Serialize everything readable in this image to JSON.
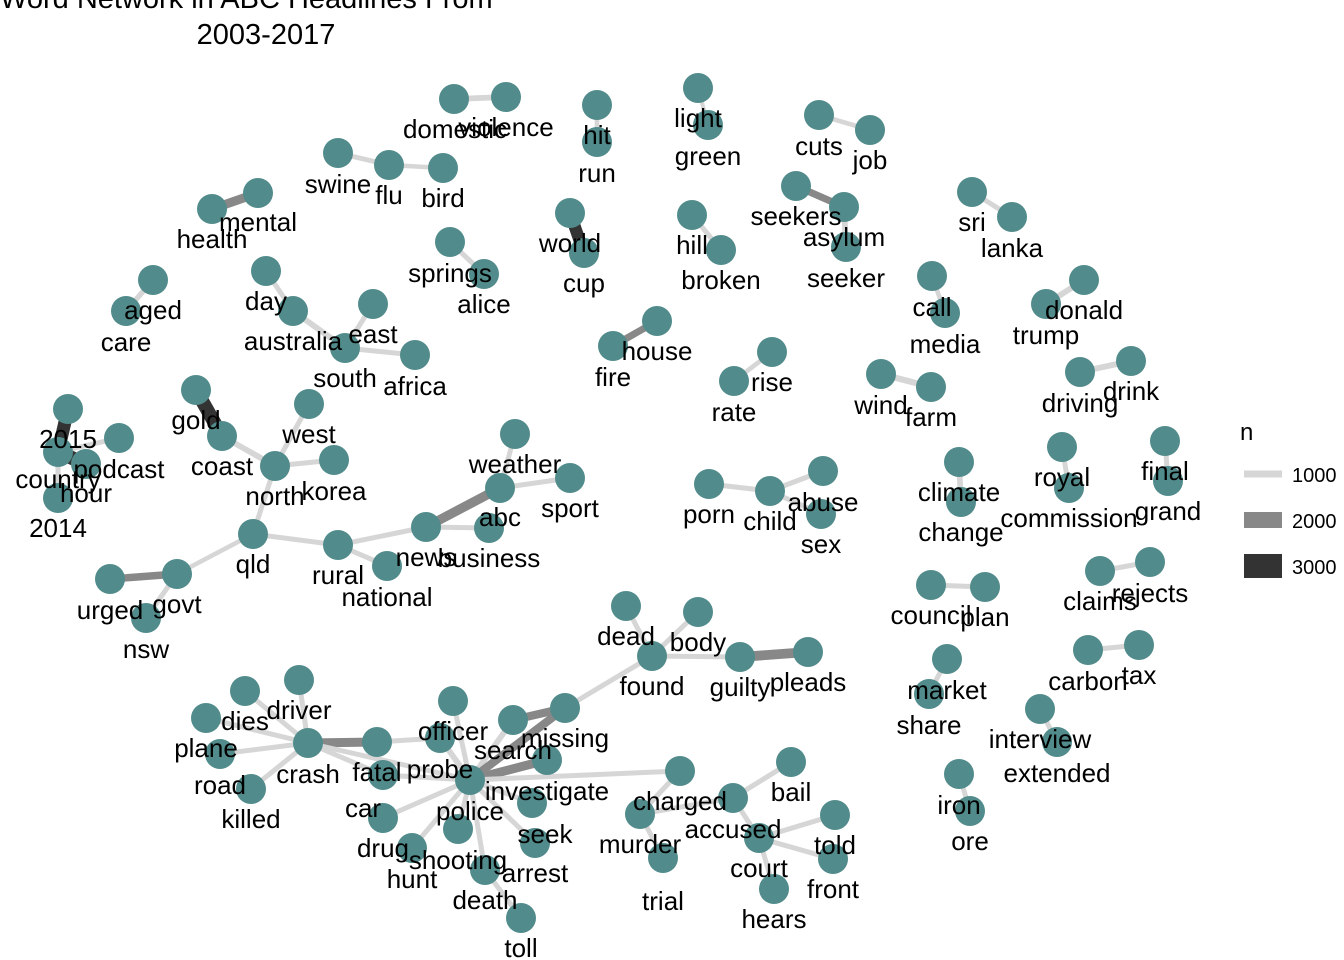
{
  "title_lines": [
    "Word Network in ABC Headlines From",
    "2003-2017"
  ],
  "colors": {
    "node": "#528b8b",
    "edge_1000": "#d6d6d6",
    "edge_2000": "#888888",
    "edge_3000": "#333333",
    "background": "#ffffff"
  },
  "legend": {
    "title": "n",
    "entries": [
      {
        "label": "1000",
        "n": 1000
      },
      {
        "label": "2000",
        "n": 2000
      },
      {
        "label": "3000",
        "n": 3000
      }
    ]
  },
  "chart_data": {
    "type": "network",
    "nodes": [
      "domestic",
      "violence",
      "hit",
      "run",
      "light",
      "green",
      "cuts",
      "job",
      "swine",
      "flu",
      "bird",
      "health",
      "mental",
      "seekers",
      "asylum",
      "seeker",
      "world",
      "cup",
      "hill",
      "broken",
      "sri",
      "lanka",
      "springs",
      "alice",
      "aged",
      "care",
      "day",
      "australia",
      "east",
      "south",
      "africa",
      "call",
      "media",
      "donald",
      "trump",
      "fire",
      "house",
      "rate",
      "rise",
      "wind",
      "farm",
      "driving",
      "drink",
      "gold",
      "coast",
      "west",
      "2015",
      "country",
      "podcast",
      "hour",
      "2014",
      "north",
      "korea",
      "weather",
      "abc",
      "sport",
      "news",
      "business",
      "rural",
      "national",
      "qld",
      "urged",
      "govt",
      "nsw",
      "porn",
      "child",
      "abuse",
      "sex",
      "climate",
      "change",
      "royal",
      "commission",
      "final",
      "grand",
      "council",
      "plan",
      "claims",
      "rejects",
      "carbon",
      "tax",
      "market",
      "share",
      "interview",
      "extended",
      "iron",
      "ore",
      "dead",
      "body",
      "found",
      "guilty",
      "pleads",
      "officer",
      "missing",
      "search",
      "driver",
      "dies",
      "plane",
      "crash",
      "fatal",
      "probe",
      "road",
      "killed",
      "car",
      "investigate",
      "police",
      "charged",
      "bail",
      "accused",
      "told",
      "front",
      "court",
      "hears",
      "murder",
      "trial",
      "seek",
      "arrest",
      "drug",
      "hunt",
      "shooting",
      "death",
      "toll"
    ],
    "edges": [
      {
        "from": "domestic",
        "to": "violence",
        "n": 1200
      },
      {
        "from": "hit",
        "to": "run",
        "n": 900
      },
      {
        "from": "light",
        "to": "green",
        "n": 800
      },
      {
        "from": "cuts",
        "to": "job",
        "n": 900
      },
      {
        "from": "swine",
        "to": "flu",
        "n": 1000
      },
      {
        "from": "flu",
        "to": "bird",
        "n": 900
      },
      {
        "from": "health",
        "to": "mental",
        "n": 2000
      },
      {
        "from": "seekers",
        "to": "asylum",
        "n": 1500
      },
      {
        "from": "asylum",
        "to": "seeker",
        "n": 1200
      },
      {
        "from": "world",
        "to": "cup",
        "n": 2800
      },
      {
        "from": "hill",
        "to": "broken",
        "n": 1000
      },
      {
        "from": "sri",
        "to": "lanka",
        "n": 1000
      },
      {
        "from": "springs",
        "to": "alice",
        "n": 1000
      },
      {
        "from": "aged",
        "to": "care",
        "n": 1100
      },
      {
        "from": "day",
        "to": "australia",
        "n": 1000
      },
      {
        "from": "australia",
        "to": "south",
        "n": 1200
      },
      {
        "from": "east",
        "to": "south",
        "n": 1000
      },
      {
        "from": "south",
        "to": "africa",
        "n": 1000
      },
      {
        "from": "call",
        "to": "media",
        "n": 900
      },
      {
        "from": "donald",
        "to": "trump",
        "n": 1200
      },
      {
        "from": "fire",
        "to": "house",
        "n": 1500
      },
      {
        "from": "rate",
        "to": "rise",
        "n": 900
      },
      {
        "from": "wind",
        "to": "farm",
        "n": 1300
      },
      {
        "from": "driving",
        "to": "drink",
        "n": 1200
      },
      {
        "from": "gold",
        "to": "coast",
        "n": 3200
      },
      {
        "from": "coast",
        "to": "north",
        "n": 1200
      },
      {
        "from": "west",
        "to": "north",
        "n": 1000
      },
      {
        "from": "north",
        "to": "korea",
        "n": 1000
      },
      {
        "from": "north",
        "to": "qld",
        "n": 1000
      },
      {
        "from": "2015",
        "to": "country",
        "n": 3000
      },
      {
        "from": "country",
        "to": "hour",
        "n": 3200
      },
      {
        "from": "podcast",
        "to": "country",
        "n": 1000
      },
      {
        "from": "2014",
        "to": "country",
        "n": 1000
      },
      {
        "from": "weather",
        "to": "abc",
        "n": 1000
      },
      {
        "from": "abc",
        "to": "news",
        "n": 2100
      },
      {
        "from": "abc",
        "to": "sport",
        "n": 1000
      },
      {
        "from": "news",
        "to": "business",
        "n": 1000
      },
      {
        "from": "news",
        "to": "rural",
        "n": 1000
      },
      {
        "from": "rural",
        "to": "national",
        "n": 1000
      },
      {
        "from": "rural",
        "to": "qld",
        "n": 1000
      },
      {
        "from": "qld",
        "to": "govt",
        "n": 900
      },
      {
        "from": "urged",
        "to": "govt",
        "n": 1600
      },
      {
        "from": "govt",
        "to": "nsw",
        "n": 1000
      },
      {
        "from": "porn",
        "to": "child",
        "n": 1000
      },
      {
        "from": "child",
        "to": "abuse",
        "n": 1000
      },
      {
        "from": "child",
        "to": "sex",
        "n": 1000
      },
      {
        "from": "climate",
        "to": "change",
        "n": 1200
      },
      {
        "from": "royal",
        "to": "commission",
        "n": 1000
      },
      {
        "from": "final",
        "to": "grand",
        "n": 1000
      },
      {
        "from": "council",
        "to": "plan",
        "n": 1000
      },
      {
        "from": "claims",
        "to": "rejects",
        "n": 1000
      },
      {
        "from": "carbon",
        "to": "tax",
        "n": 1000
      },
      {
        "from": "market",
        "to": "share",
        "n": 1000
      },
      {
        "from": "interview",
        "to": "extended",
        "n": 1000
      },
      {
        "from": "iron",
        "to": "ore",
        "n": 1000
      },
      {
        "from": "dead",
        "to": "found",
        "n": 1000
      },
      {
        "from": "body",
        "to": "found",
        "n": 1000
      },
      {
        "from": "found",
        "to": "missing",
        "n": 1000
      },
      {
        "from": "found",
        "to": "guilty",
        "n": 1000
      },
      {
        "from": "guilty",
        "to": "pleads",
        "n": 2200
      },
      {
        "from": "missing",
        "to": "search",
        "n": 1800
      },
      {
        "from": "search",
        "to": "police",
        "n": 1200
      },
      {
        "from": "officer",
        "to": "police",
        "n": 1000
      },
      {
        "from": "driver",
        "to": "crash",
        "n": 1000
      },
      {
        "from": "dies",
        "to": "crash",
        "n": 1000
      },
      {
        "from": "plane",
        "to": "crash",
        "n": 1000
      },
      {
        "from": "road",
        "to": "crash",
        "n": 1000
      },
      {
        "from": "killed",
        "to": "crash",
        "n": 1000
      },
      {
        "from": "crash",
        "to": "fatal",
        "n": 2000
      },
      {
        "from": "crash",
        "to": "car",
        "n": 1000
      },
      {
        "from": "crash",
        "to": "police",
        "n": 1000
      },
      {
        "from": "fatal",
        "to": "probe",
        "n": 1000
      },
      {
        "from": "probe",
        "to": "police",
        "n": 1200
      },
      {
        "from": "police",
        "to": "investigate",
        "n": 2000
      },
      {
        "from": "police",
        "to": "missing",
        "n": 1800
      },
      {
        "from": "police",
        "to": "car",
        "n": 1000
      },
      {
        "from": "police",
        "to": "drug",
        "n": 1000
      },
      {
        "from": "police",
        "to": "hunt",
        "n": 1000
      },
      {
        "from": "police",
        "to": "shooting",
        "n": 1000
      },
      {
        "from": "police",
        "to": "death",
        "n": 1000
      },
      {
        "from": "police",
        "to": "seek",
        "n": 1000
      },
      {
        "from": "police",
        "to": "arrest",
        "n": 1000
      },
      {
        "from": "police",
        "to": "charged",
        "n": 1000
      },
      {
        "from": "death",
        "to": "toll",
        "n": 1000
      },
      {
        "from": "charged",
        "to": "murder",
        "n": 1000
      },
      {
        "from": "murder",
        "to": "trial",
        "n": 1000
      },
      {
        "from": "murder",
        "to": "accused",
        "n": 1000
      },
      {
        "from": "accused",
        "to": "court",
        "n": 1000
      },
      {
        "from": "court",
        "to": "told",
        "n": 1000
      },
      {
        "from": "court",
        "to": "front",
        "n": 1000
      },
      {
        "from": "court",
        "to": "hears",
        "n": 1000
      },
      {
        "from": "accused",
        "to": "bail",
        "n": 1000
      }
    ]
  }
}
